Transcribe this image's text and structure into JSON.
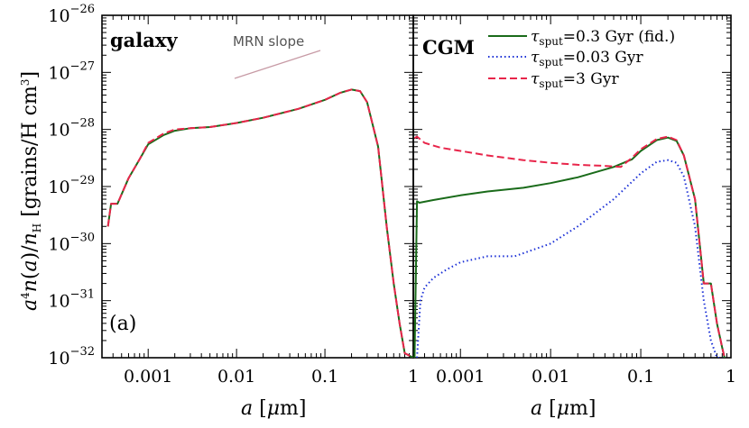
{
  "chart_data": [
    {
      "type": "line",
      "panel": "left",
      "title": "galaxy",
      "panel_label": "(a)",
      "annotation": "MRN slope",
      "xlabel": "a [μm]",
      "ylabel": "a⁴n(a)/n_H [grains/H cm³]",
      "xscale": "log",
      "yscale": "log",
      "xlim": [
        0.0003,
        1
      ],
      "ylim": [
        1e-32,
        1e-26
      ],
      "x_ticks": [
        "0.001",
        "0.01",
        "0.1",
        "1"
      ],
      "y_ticks": [
        "10",
        "10",
        "10",
        "10",
        "10",
        "10",
        "10"
      ],
      "y_tick_exponents": [
        "−32",
        "−31",
        "−30",
        "−29",
        "−28",
        "−27",
        "−26"
      ],
      "series": [
        {
          "color": "#1a6b1a",
          "dash": "solid",
          "x": [
            0.00035,
            0.00038,
            0.00045,
            0.0006,
            0.0008,
            0.001,
            0.0015,
            0.002,
            0.003,
            0.005,
            0.01,
            0.02,
            0.05,
            0.1,
            0.15,
            0.2,
            0.25,
            0.3,
            0.4,
            0.5,
            0.6,
            0.7,
            0.8,
            1.0
          ],
          "y": [
            2e-30,
            5e-30,
            5e-30,
            1.4e-29,
            3e-29,
            5.5e-29,
            8e-29,
            9.5e-29,
            1.05e-28,
            1.1e-28,
            1.3e-28,
            1.6e-28,
            2.3e-28,
            3.3e-28,
            4.4e-28,
            5e-28,
            4.7e-28,
            3e-28,
            5e-29,
            2e-30,
            2e-31,
            4e-32,
            1.2e-32,
            1e-32
          ]
        },
        {
          "color": "#e8254a",
          "dash": "dashed",
          "x": [
            0.00035,
            0.00038,
            0.00045,
            0.0006,
            0.0008,
            0.001,
            0.0015,
            0.002,
            0.003,
            0.005,
            0.01,
            0.02,
            0.05,
            0.1,
            0.15,
            0.2,
            0.25,
            0.3,
            0.4,
            0.5,
            0.6,
            0.7,
            0.8,
            1.0
          ],
          "y": [
            2e-30,
            5e-30,
            5e-30,
            1.4e-29,
            3e-29,
            5.8e-29,
            8.5e-29,
            1e-28,
            1.05e-28,
            1.1e-28,
            1.3e-28,
            1.6e-28,
            2.3e-28,
            3.3e-28,
            4.4e-28,
            5e-28,
            4.7e-28,
            3e-28,
            5e-29,
            2e-30,
            2e-31,
            4e-32,
            1.2e-32,
            1e-32
          ]
        }
      ]
    },
    {
      "type": "line",
      "panel": "right",
      "title": "CGM",
      "xlabel": "a [μm]",
      "xscale": "log",
      "yscale": "log",
      "xlim": [
        0.0003,
        1
      ],
      "ylim": [
        1e-32,
        1e-26
      ],
      "x_ticks": [
        "0.001",
        "0.01",
        "0.1",
        "1"
      ],
      "legend": {
        "placement": "top-right",
        "entries": [
          {
            "label_main": "τ",
            "label_sub": "sput",
            "label_rest": "=0.3 Gyr (fid.)"
          },
          {
            "label_main": "τ",
            "label_sub": "sput",
            "label_rest": "=0.03 Gyr"
          },
          {
            "label_main": "τ",
            "label_sub": "sput",
            "label_rest": "=3 Gyr"
          }
        ]
      },
      "series": [
        {
          "color": "#1a6b1a",
          "dash": "solid",
          "x": [
            0.00031,
            0.00033,
            0.00035,
            0.0005,
            0.001,
            0.002,
            0.005,
            0.01,
            0.02,
            0.05,
            0.08,
            0.1,
            0.15,
            0.2,
            0.25,
            0.3,
            0.4,
            0.5,
            0.6,
            0.7,
            0.8,
            0.85
          ],
          "y": [
            1e-32,
            5.5e-30,
            5.2e-30,
            5.8e-30,
            7e-30,
            8.2e-30,
            9.5e-30,
            1.15e-29,
            1.45e-29,
            2.2e-29,
            3e-29,
            4.2e-29,
            6.5e-29,
            7.2e-29,
            6.3e-29,
            3.5e-29,
            6e-30,
            2e-31,
            2e-31,
            4e-32,
            1.5e-32,
            1e-32
          ]
        },
        {
          "color": "#1a2fd6",
          "dash": "dotted",
          "x": [
            0.00033,
            0.00036,
            0.0004,
            0.0005,
            0.0007,
            0.001,
            0.002,
            0.004,
            0.01,
            0.02,
            0.05,
            0.1,
            0.15,
            0.2,
            0.25,
            0.3,
            0.4,
            0.5,
            0.6,
            0.7,
            0.8
          ],
          "y": [
            1e-32,
            1e-31,
            1.7e-31,
            2.5e-31,
            3.5e-31,
            4.7e-31,
            6e-31,
            6e-31,
            1e-30,
            2e-30,
            6e-30,
            1.7e-29,
            2.7e-29,
            2.9e-29,
            2.6e-29,
            1.5e-29,
            2e-30,
            1e-31,
            2e-32,
            1e-32,
            1e-32
          ]
        },
        {
          "color": "#e8254a",
          "dash": "dashed",
          "x": [
            0.00031,
            0.00033,
            0.0004,
            0.0006,
            0.001,
            0.002,
            0.005,
            0.01,
            0.02,
            0.04,
            0.06,
            0.08,
            0.1,
            0.15,
            0.2,
            0.25,
            0.3,
            0.4,
            0.5,
            0.6,
            0.7,
            0.8,
            0.85
          ],
          "y": [
            7e-29,
            7.5e-29,
            5.8e-29,
            4.8e-29,
            4.2e-29,
            3.5e-29,
            2.9e-29,
            2.6e-29,
            2.4e-29,
            2.3e-29,
            2.2e-29,
            3.2e-29,
            4.5e-29,
            6.8e-29,
            7.5e-29,
            6.5e-29,
            3.5e-29,
            6e-30,
            2e-31,
            2e-31,
            4e-32,
            1.5e-32,
            1e-32
          ]
        }
      ]
    }
  ]
}
